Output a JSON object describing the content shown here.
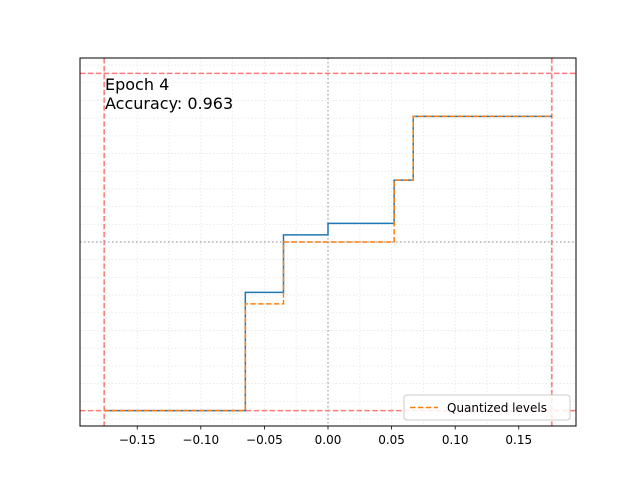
{
  "chart_data": {
    "type": "line",
    "title": "",
    "xlabel": "",
    "ylabel": "",
    "xlim": [
      -0.195,
      0.195
    ],
    "ylim": [
      -1.04,
      1.04
    ],
    "xticks": [
      -0.15,
      -0.1,
      -0.05,
      0.0,
      0.05,
      0.1,
      0.15
    ],
    "xtick_labels": [
      "−0.15",
      "−0.10",
      "−0.05",
      "0.00",
      "0.05",
      "0.10",
      "0.15"
    ],
    "grid": true,
    "legend": {
      "placement": "lower-right"
    },
    "annotations": [
      "Epoch 4",
      "Accuracy: 0.963"
    ],
    "reference_lines": {
      "clip_vertical": [
        -0.176,
        0.176
      ],
      "clip_horizontal": [
        -0.953,
        0.953
      ],
      "zero_vertical": 0.0,
      "zero_horizontal": 0.0,
      "clip_color": "#ff7a7a",
      "zero_color": "#a0a0a0"
    },
    "series": [
      {
        "name": "",
        "style": "solid",
        "color": "#1f77b4",
        "x": [
          -0.176,
          -0.065,
          -0.065,
          -0.035,
          -0.035,
          0.0,
          0.0,
          0.052,
          0.052,
          0.067,
          0.067,
          0.176
        ],
        "y": [
          -0.953,
          -0.953,
          -0.285,
          -0.285,
          0.04,
          0.04,
          0.105,
          0.105,
          0.35,
          0.35,
          0.71,
          0.71
        ]
      },
      {
        "name": "Quantized levels",
        "style": "dashed",
        "color": "#ff7f0e",
        "x": [
          -0.176,
          -0.065,
          -0.065,
          -0.035,
          -0.035,
          0.052,
          0.052,
          0.067,
          0.067,
          0.176
        ],
        "y": [
          -0.953,
          -0.953,
          -0.35,
          -0.35,
          0.0,
          0.0,
          0.35,
          0.35,
          0.71,
          0.71
        ]
      }
    ]
  }
}
